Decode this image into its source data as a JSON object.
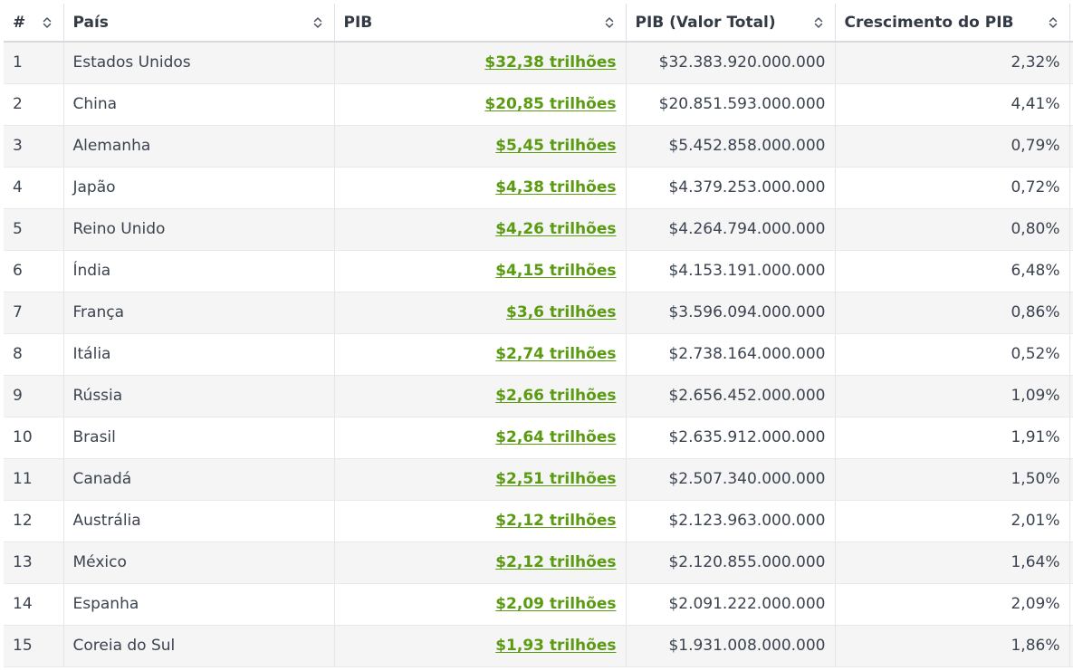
{
  "table": {
    "headers": {
      "rank": "#",
      "country": "País",
      "gdp": "PIB",
      "gdp_total": "PIB (Valor Total)",
      "growth": "Crescimento do PIB"
    },
    "rows": [
      {
        "rank": "1",
        "country": "Estados Unidos",
        "gdp": "$32,38 trilhões",
        "gdp_total": "$32.383.920.000.000",
        "growth": "2,32%"
      },
      {
        "rank": "2",
        "country": "China",
        "gdp": "$20,85 trilhões",
        "gdp_total": "$20.851.593.000.000",
        "growth": "4,41%"
      },
      {
        "rank": "3",
        "country": "Alemanha",
        "gdp": "$5,45 trilhões",
        "gdp_total": "$5.452.858.000.000",
        "growth": "0,79%"
      },
      {
        "rank": "4",
        "country": "Japão",
        "gdp": "$4,38 trilhões",
        "gdp_total": "$4.379.253.000.000",
        "growth": "0,72%"
      },
      {
        "rank": "5",
        "country": "Reino Unido",
        "gdp": "$4,26 trilhões",
        "gdp_total": "$4.264.794.000.000",
        "growth": "0,80%"
      },
      {
        "rank": "6",
        "country": "Índia",
        "gdp": "$4,15 trilhões",
        "gdp_total": "$4.153.191.000.000",
        "growth": "6,48%"
      },
      {
        "rank": "7",
        "country": "França",
        "gdp": "$3,6 trilhões",
        "gdp_total": "$3.596.094.000.000",
        "growth": "0,86%"
      },
      {
        "rank": "8",
        "country": "Itália",
        "gdp": "$2,74 trilhões",
        "gdp_total": "$2.738.164.000.000",
        "growth": "0,52%"
      },
      {
        "rank": "9",
        "country": "Rússia",
        "gdp": "$2,66 trilhões",
        "gdp_total": "$2.656.452.000.000",
        "growth": "1,09%"
      },
      {
        "rank": "10",
        "country": "Brasil",
        "gdp": "$2,64 trilhões",
        "gdp_total": "$2.635.912.000.000",
        "growth": "1,91%"
      },
      {
        "rank": "11",
        "country": "Canadá",
        "gdp": "$2,51 trilhões",
        "gdp_total": "$2.507.340.000.000",
        "growth": "1,50%"
      },
      {
        "rank": "12",
        "country": "Austrália",
        "gdp": "$2,12 trilhões",
        "gdp_total": "$2.123.963.000.000",
        "growth": "2,01%"
      },
      {
        "rank": "13",
        "country": "México",
        "gdp": "$2,12 trilhões",
        "gdp_total": "$2.120.855.000.000",
        "growth": "1,64%"
      },
      {
        "rank": "14",
        "country": "Espanha",
        "gdp": "$2,09 trilhões",
        "gdp_total": "$2.091.222.000.000",
        "growth": "2,09%"
      },
      {
        "rank": "15",
        "country": "Coreia do Sul",
        "gdp": "$1,93 trilhões",
        "gdp_total": "$1.931.008.000.000",
        "growth": "1,86%"
      }
    ]
  },
  "colors": {
    "link_green": "#5a9b12",
    "row_stripe": "#f5f5f5",
    "text": "#333a44"
  },
  "icons": {
    "sort": "sort-icon"
  }
}
